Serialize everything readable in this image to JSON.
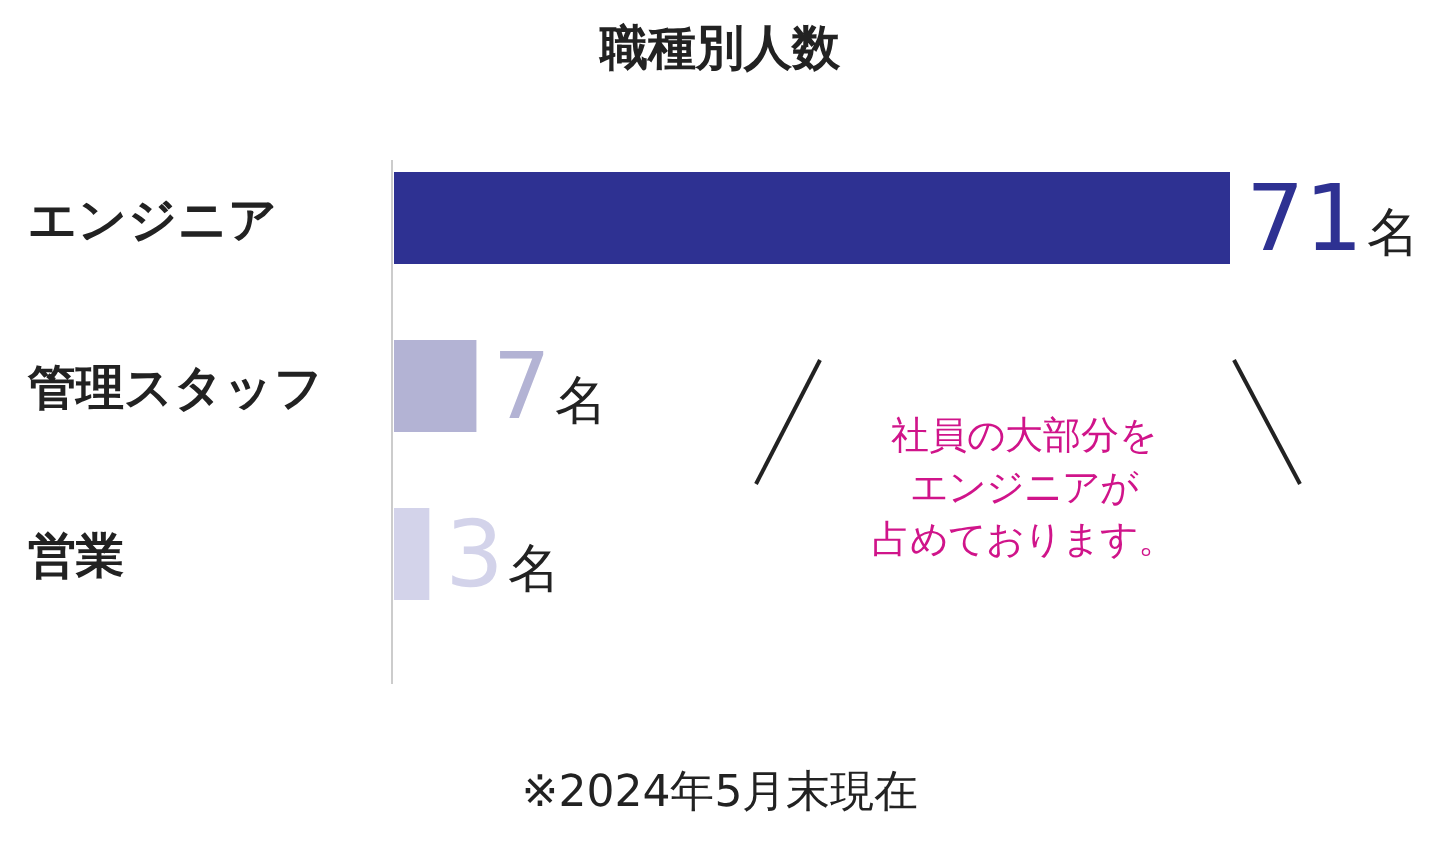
{
  "chart_data": {
    "type": "bar",
    "orientation": "horizontal",
    "title": "職種別人数",
    "categories": [
      "エンジニア",
      "管理スタッフ",
      "営業"
    ],
    "values": [
      71,
      7,
      3
    ],
    "colors": [
      "#2e3192",
      "#b3b3d4",
      "#d3d3ea"
    ],
    "value_labels": [
      "71名",
      "7名",
      "3名"
    ],
    "annotations": [
      {
        "text": "社員の大部分をエンジニアが占めております。"
      },
      "※2024年5月末現在"
    ]
  }
}
